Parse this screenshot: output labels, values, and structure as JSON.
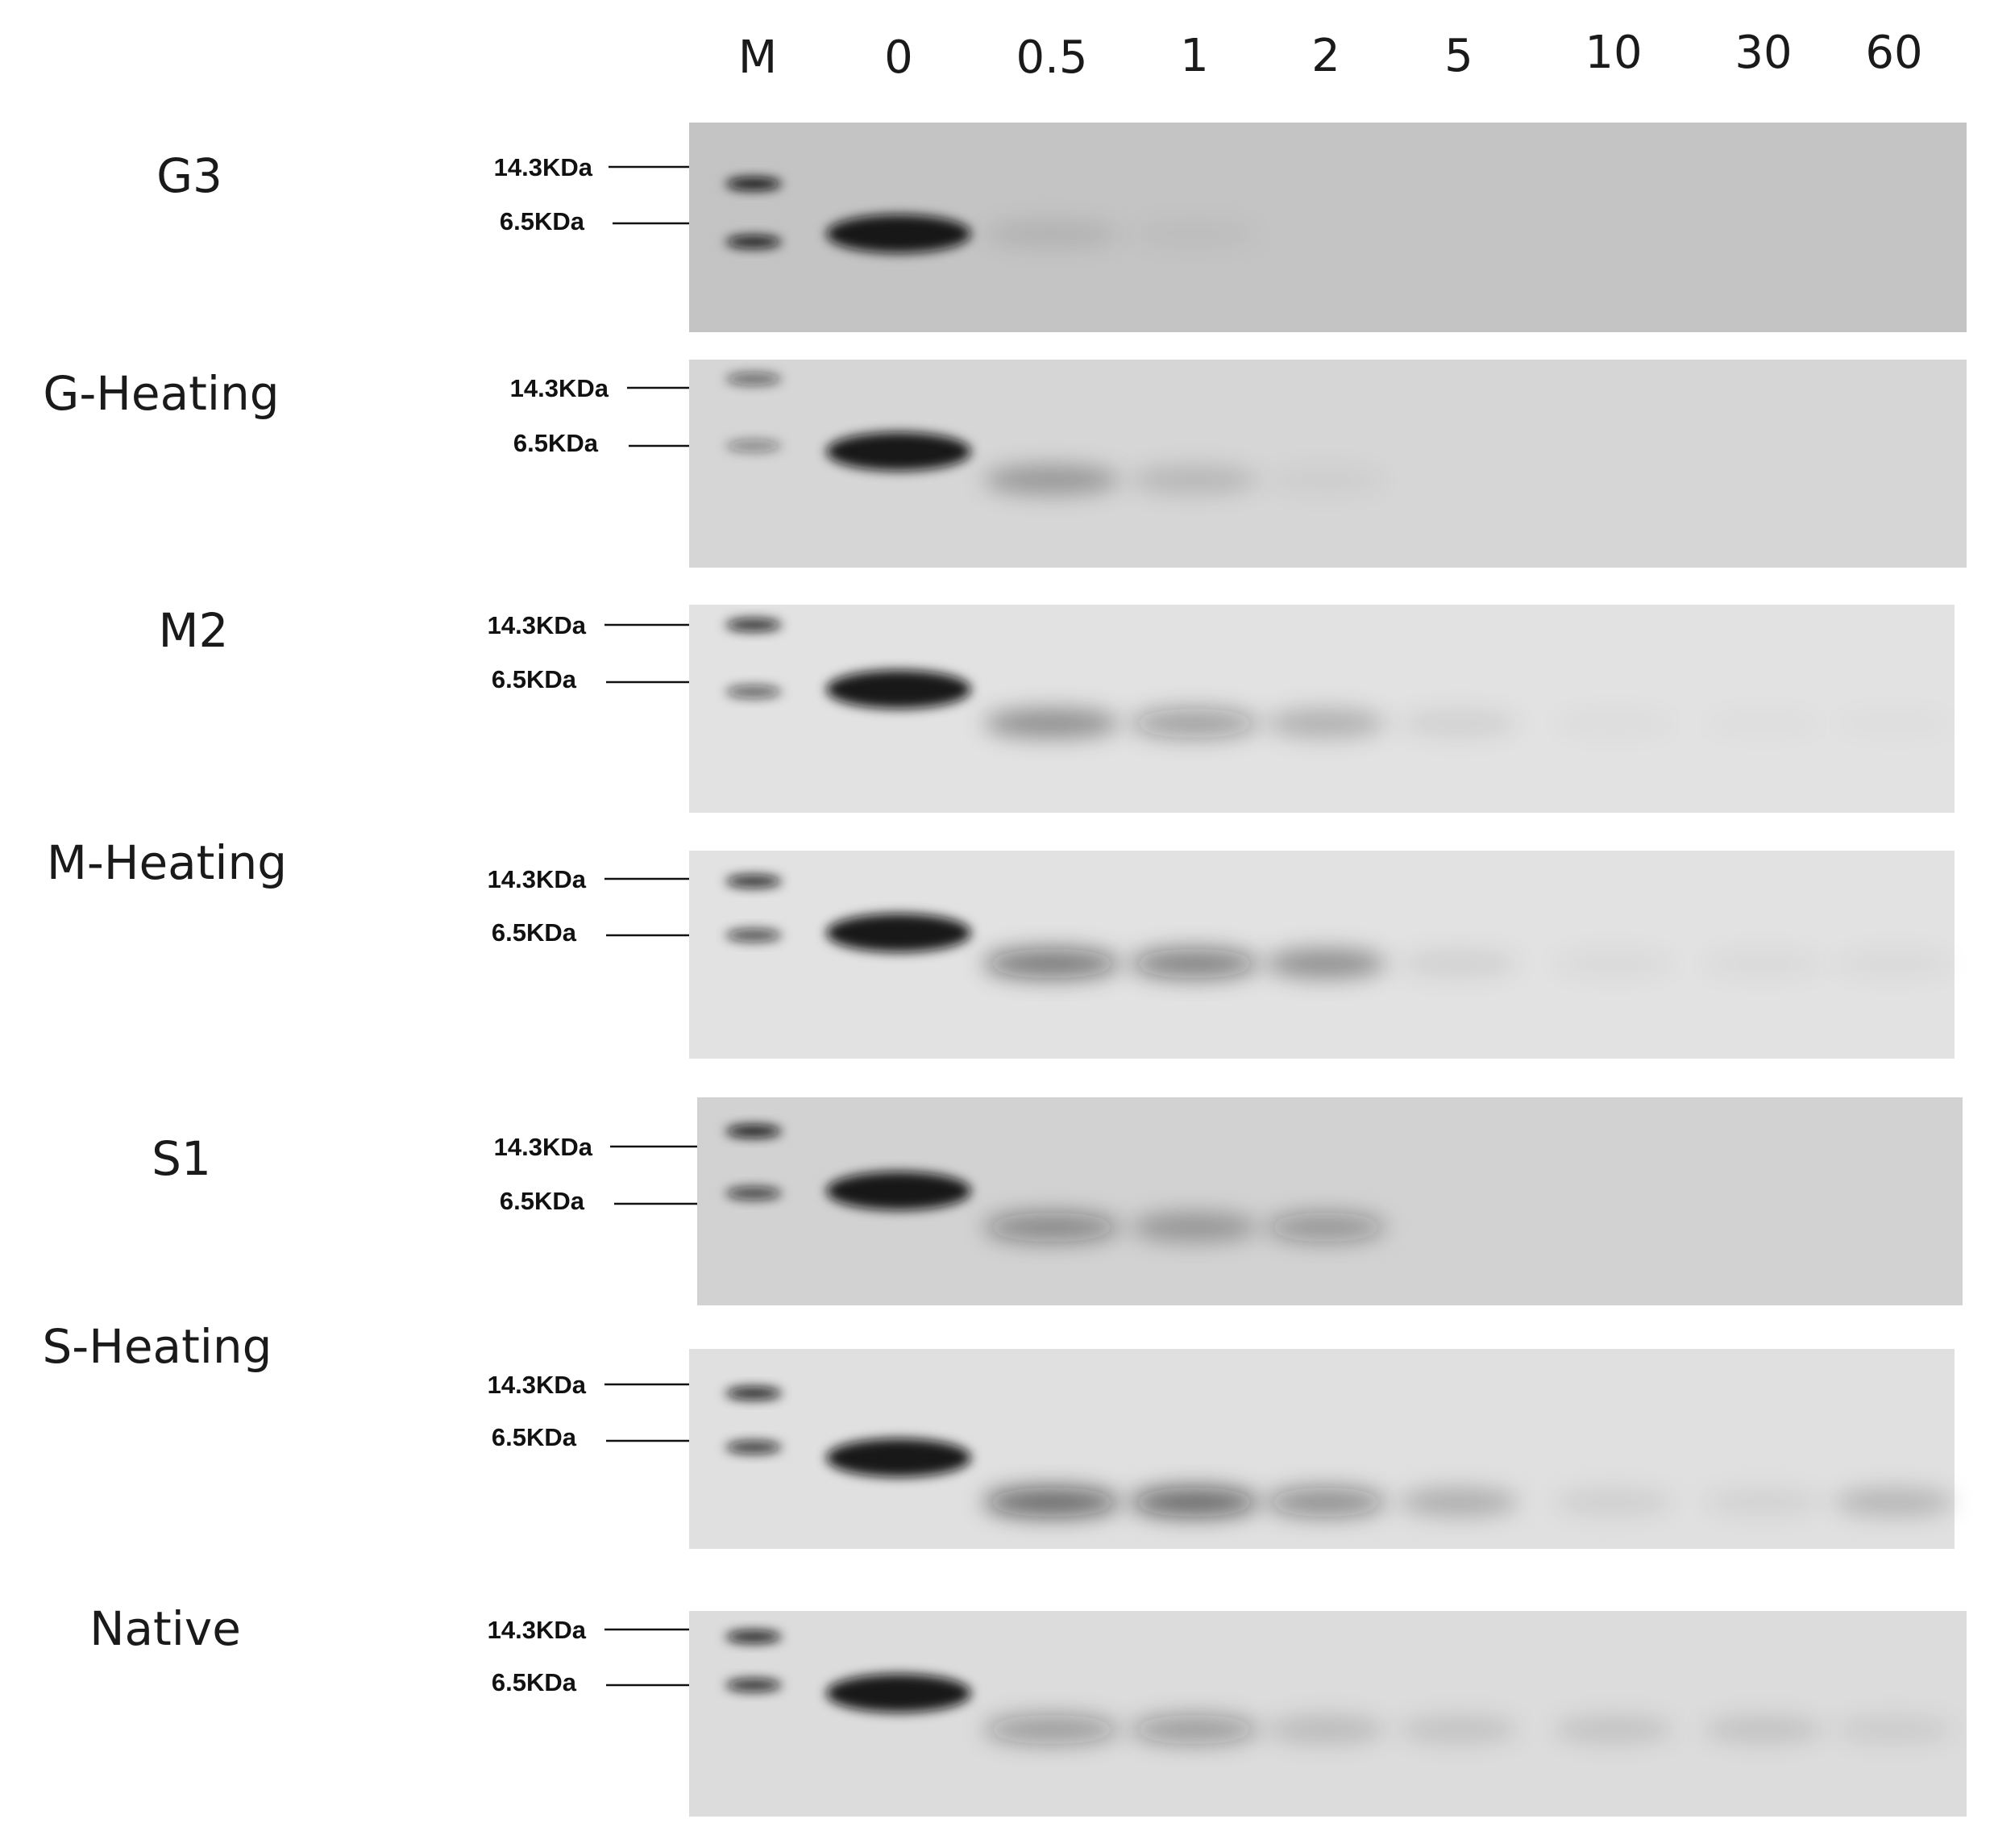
{
  "lanes": [
    "M",
    "0",
    "0.5",
    "1",
    "2",
    "5",
    "10",
    "30",
    "60"
  ],
  "panels": [
    {
      "title": "G3",
      "marker_labels": [
        "14.3KDa",
        "6.5KDa"
      ],
      "background": "#c4c4c4",
      "marker_intensity": [
        1.0,
        0.95
      ],
      "sample_band_intensity": [
        1.0,
        0.12,
        0.05,
        0,
        0,
        0,
        0,
        0
      ]
    },
    {
      "title": "G-Heating",
      "marker_labels": [
        "14.3KDa",
        "6.5KDa"
      ],
      "background": "#d6d6d6",
      "marker_intensity": [
        0.55,
        0.4
      ],
      "sample_band_intensity": [
        1.0,
        0.4,
        0.2,
        0.05,
        0,
        0,
        0,
        0
      ]
    },
    {
      "title": "M2",
      "marker_labels": [
        "14.3KDa",
        "6.5KDa"
      ],
      "background": "#e2e2e2",
      "marker_intensity": [
        0.85,
        0.6
      ],
      "sample_band_intensity": [
        1.0,
        0.5,
        0.45,
        0.3,
        0.1,
        0.03,
        0.02,
        0.02
      ]
    },
    {
      "title": "M-Heating",
      "marker_labels": [
        "14.3KDa",
        "6.5KDa"
      ],
      "background": "#e2e2e2",
      "marker_intensity": [
        0.85,
        0.7
      ],
      "sample_band_intensity": [
        1.0,
        0.7,
        0.65,
        0.5,
        0.1,
        0.05,
        0.05,
        0.05
      ]
    },
    {
      "title": "S1",
      "marker_labels": [
        "14.3KDa",
        "6.5KDa"
      ],
      "background": "#d2d2d2",
      "marker_intensity": [
        0.95,
        0.75
      ],
      "sample_band_intensity": [
        1.0,
        0.55,
        0.4,
        0.45,
        0,
        0,
        0,
        0
      ]
    },
    {
      "title": "S-Heating",
      "marker_labels": [
        "14.3KDa",
        "6.5KDa"
      ],
      "background": "#e0e0e0",
      "marker_intensity": [
        0.9,
        0.8
      ],
      "sample_band_intensity": [
        1.0,
        0.8,
        0.8,
        0.55,
        0.3,
        0.1,
        0.08,
        0.25
      ]
    },
    {
      "title": "Native",
      "marker_labels": [
        "14.3KDa",
        "6.5KDa"
      ],
      "background": "#dcdcdc",
      "marker_intensity": [
        0.9,
        0.85
      ],
      "sample_band_intensity": [
        1.0,
        0.45,
        0.45,
        0.2,
        0.15,
        0.15,
        0.15,
        0.1
      ]
    }
  ]
}
